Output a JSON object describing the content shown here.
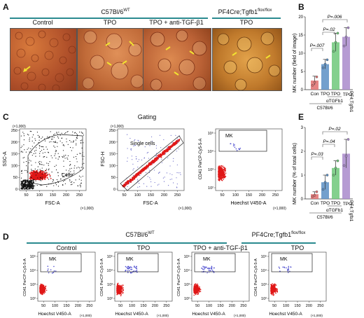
{
  "panelA": {
    "label": "A",
    "group_c57": "C57Bl/6",
    "group_c57_sup": "WT",
    "group_pf4": "PF4Cre;Tgfb1",
    "group_pf4_sup": "flox/flox",
    "images": [
      {
        "label": "Control"
      },
      {
        "label": "TPO"
      },
      {
        "label": "TPO + anti-TGF-β1"
      },
      {
        "label": "TPO"
      }
    ]
  },
  "panelB": {
    "label": "B",
    "ylabel": "MK number (field of image)",
    "p1": "P=.007",
    "p2": "P=.02",
    "p3": "P=.006",
    "xgroup1": "αTGFb1",
    "xgroup2": "C57Bl/6",
    "xgroup3": "PF4;Tgfb1"
  },
  "panelE": {
    "label": "E",
    "ylabel": "MK number (% of total cells)",
    "p1": "P=.03",
    "p2": "P=.04",
    "p3": "P=.02",
    "xgroup1": "αTGFb1",
    "xgroup2": "C57Bl/6",
    "xgroup3": "PF4;Tgfb1"
  },
  "chart_data": [
    {
      "type": "bar",
      "panel": "B",
      "categories": [
        "Con",
        "TPO",
        "TPO",
        "TPO"
      ],
      "values": [
        2.5,
        7,
        13,
        14.5
      ],
      "errors": [
        1.2,
        1.3,
        2.5,
        2.5
      ],
      "colors": [
        "#e07070",
        "#5b8fc4",
        "#6ec87a",
        "#a98acb"
      ],
      "points": [
        [
          1.2,
          2.0,
          3.5
        ],
        [
          6.0,
          7.0,
          8.2
        ],
        [
          10.5,
          13.0,
          15.5
        ],
        [
          12.0,
          14.5,
          17.0
        ]
      ],
      "ylabel": "MK number (field of image)",
      "yticks": [
        "0",
        "5",
        "10",
        "15",
        "20"
      ],
      "ylim": [
        0,
        20
      ]
    },
    {
      "type": "bar",
      "panel": "E",
      "categories": [
        "Con",
        "TPO",
        "TPO",
        "TPO"
      ],
      "values": [
        0.2,
        0.7,
        1.3,
        1.9
      ],
      "errors": [
        0.1,
        0.3,
        0.3,
        0.6
      ],
      "colors": [
        "#e07070",
        "#5b8fc4",
        "#6ec87a",
        "#a98acb"
      ],
      "points": [
        [
          0.1,
          0.15,
          0.3
        ],
        [
          0.4,
          0.7,
          1.0
        ],
        [
          1.0,
          1.3,
          1.6
        ],
        [
          1.4,
          1.8,
          2.5
        ]
      ],
      "ylabel": "MK number (% of total cells)",
      "yticks": [
        "0",
        "1",
        "2",
        "3"
      ],
      "ylim": [
        0,
        3
      ]
    }
  ],
  "panelC": {
    "label": "C",
    "gating_title": "Gating",
    "plot1": {
      "ylabel": "SSC-A",
      "xlabel": "FSC-A",
      "gate": "Cells",
      "ymult": "(×1,000)",
      "xmult": "(×1,000)",
      "yticks": [
        "0",
        "50",
        "100",
        "150",
        "200",
        "250"
      ],
      "xticks": [
        "50",
        "100",
        "150",
        "200",
        "250"
      ]
    },
    "plot2": {
      "ylabel": "FSC-H",
      "xlabel": "FSC-A",
      "gate": "Single cells",
      "ymult": "(×1,000)",
      "xmult": "(×1,000)",
      "yticks": [
        "0",
        "50",
        "100",
        "150",
        "200",
        "250"
      ],
      "xticks": [
        "50",
        "100",
        "150",
        "200",
        "250"
      ]
    },
    "plot3": {
      "ylabel": "CD41 PerCP-Cy5-5-A",
      "xlabel": "Hoechst V450-A",
      "gate": "MK",
      "xmult": "(×1,000)",
      "yticks": [
        "10²",
        "10³",
        "10⁴",
        "10⁵"
      ],
      "xticks": [
        "50",
        "100",
        "150",
        "200",
        "250"
      ]
    }
  },
  "panelD": {
    "label": "D",
    "group_c57": "C57Bl/6",
    "group_c57_sup": "WT",
    "group_pf4": "PF4Cre;Tgfb1",
    "group_pf4_sup": "flox/flox",
    "plots": [
      {
        "title": "Control",
        "gate": "MK"
      },
      {
        "title": "TPO",
        "gate": "MK"
      },
      {
        "title": "TPO + anti-TGF-β1",
        "gate": "MK"
      },
      {
        "title": "TPO",
        "gate": "MK"
      }
    ],
    "ylabel": "CD41 PerCP-Cy5-5-A",
    "xlabel": "Hoechst V450-A",
    "xmult": "(×1,000)",
    "yticks": [
      "10²",
      "10³",
      "10⁴",
      "10⁵"
    ],
    "xticks": [
      "50",
      "100",
      "150",
      "200",
      "250"
    ]
  }
}
